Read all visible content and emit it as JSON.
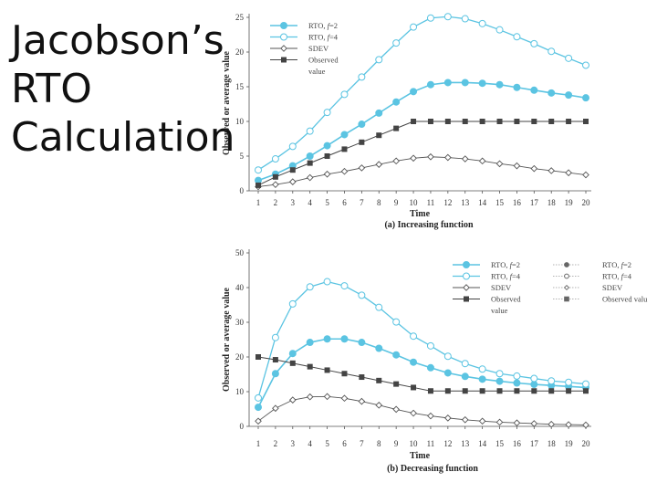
{
  "slide": {
    "title_lines": [
      "Jacobson’s",
      "RTO",
      "Calculation"
    ]
  },
  "colors": {
    "rto2": "#5bc4e2",
    "rto4": "#5bc4e2",
    "sdev": "#555555",
    "observed": "#444444",
    "axis": "#555555"
  },
  "chart_data": [
    {
      "type": "line",
      "title": "(a) Increasing function",
      "xlabel": "Time",
      "ylabel": "Observed or average value",
      "x": [
        1,
        2,
        3,
        4,
        5,
        6,
        7,
        8,
        9,
        10,
        11,
        12,
        13,
        14,
        15,
        16,
        17,
        18,
        19,
        20
      ],
      "ylim": [
        0,
        25
      ],
      "yticks": [
        0,
        5,
        10,
        15,
        20,
        25
      ],
      "series": [
        {
          "name": "RTO, f=2",
          "values": [
            1.5,
            2.4,
            3.6,
            5.0,
            6.5,
            8.1,
            9.6,
            11.2,
            12.8,
            14.3,
            15.3,
            15.6,
            15.6,
            15.5,
            15.3,
            14.9,
            14.5,
            14.1,
            13.8,
            13.4
          ]
        },
        {
          "name": "RTO, f=4",
          "values": [
            3.0,
            4.6,
            6.4,
            8.6,
            11.3,
            13.9,
            16.4,
            18.9,
            21.3,
            23.6,
            24.9,
            25.1,
            24.8,
            24.1,
            23.2,
            22.2,
            21.2,
            20.1,
            19.1,
            18.1
          ]
        },
        {
          "name": "SDEV",
          "values": [
            0.6,
            0.9,
            1.3,
            1.9,
            2.4,
            2.8,
            3.3,
            3.8,
            4.3,
            4.7,
            4.9,
            4.8,
            4.6,
            4.3,
            3.9,
            3.6,
            3.2,
            2.9,
            2.6,
            2.3
          ]
        },
        {
          "name": "Observed value",
          "values": [
            0.8,
            2.0,
            3.0,
            4.0,
            5.0,
            6.0,
            7.0,
            8.0,
            9.0,
            10,
            10,
            10,
            10,
            10,
            10,
            10,
            10,
            10,
            10,
            10
          ]
        }
      ],
      "legend": [
        {
          "prefix": "RTO, ",
          "italic": "f",
          "suffix": "=2"
        },
        {
          "prefix": "RTO, ",
          "italic": "f",
          "suffix": "=4"
        },
        {
          "prefix": "SDEV",
          "italic": "",
          "suffix": ""
        },
        {
          "prefix": "Observed",
          "italic": "",
          "suffix": ""
        },
        {
          "prefix": "value",
          "italic": "",
          "suffix": ""
        }
      ]
    },
    {
      "type": "line",
      "title": "(b) Decreasing function",
      "xlabel": "Time",
      "ylabel": "Observed or average value",
      "x": [
        1,
        2,
        3,
        4,
        5,
        6,
        7,
        8,
        9,
        10,
        11,
        12,
        13,
        14,
        15,
        16,
        17,
        18,
        19,
        20
      ],
      "ylim": [
        0,
        50
      ],
      "yticks": [
        0,
        10,
        20,
        30,
        40,
        50
      ],
      "series": [
        {
          "name": "RTO, f=2",
          "values": [
            5.5,
            15.2,
            21.0,
            24.2,
            25.2,
            25.2,
            24.2,
            22.5,
            20.6,
            18.5,
            16.9,
            15.4,
            14.4,
            13.6,
            13.0,
            12.5,
            12.1,
            11.8,
            11.5,
            11.2
          ]
        },
        {
          "name": "RTO, f=4",
          "values": [
            8.2,
            25.6,
            35.3,
            40.2,
            41.7,
            40.5,
            37.8,
            34.3,
            30.1,
            26.0,
            23.2,
            20.2,
            18.1,
            16.5,
            15.2,
            14.5,
            13.8,
            13.1,
            12.7,
            12.2
          ]
        },
        {
          "name": "SDEV",
          "values": [
            1.5,
            5.2,
            7.6,
            8.5,
            8.6,
            8.1,
            7.2,
            6.1,
            4.9,
            3.8,
            3.0,
            2.4,
            1.9,
            1.5,
            1.2,
            1.0,
            0.8,
            0.6,
            0.5,
            0.4
          ]
        },
        {
          "name": "Observed value",
          "values": [
            20,
            19.2,
            18.2,
            17.2,
            16.2,
            15.2,
            14.2,
            13.2,
            12.2,
            11.2,
            10.2,
            10.2,
            10.2,
            10.2,
            10.2,
            10.2,
            10.2,
            10.2,
            10.2,
            10.2
          ]
        }
      ],
      "legend": [
        {
          "prefix": "RTO, ",
          "italic": "f",
          "suffix": "=2"
        },
        {
          "prefix": "RTO, ",
          "italic": "f",
          "suffix": "=4"
        },
        {
          "prefix": "SDEV",
          "italic": "",
          "suffix": ""
        },
        {
          "prefix": "Observed",
          "italic": "",
          "suffix": ""
        },
        {
          "prefix": "value",
          "italic": "",
          "suffix": ""
        }
      ],
      "legend_secondary": [
        {
          "prefix": "RTO, ",
          "italic": "f",
          "suffix": "=2"
        },
        {
          "prefix": "RTO, ",
          "italic": "f",
          "suffix": "=4"
        },
        {
          "prefix": "SDEV",
          "italic": "",
          "suffix": ""
        },
        {
          "prefix": "Observed valu",
          "italic": "",
          "suffix": ""
        }
      ]
    }
  ]
}
